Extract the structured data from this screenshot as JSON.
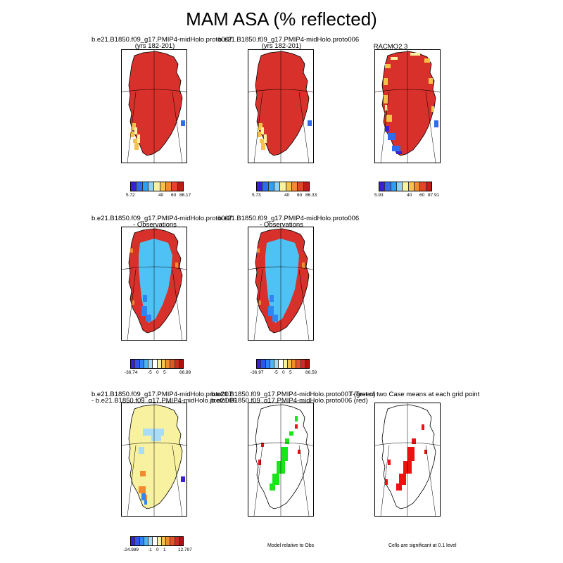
{
  "title": "MAM ASA (% reflected)",
  "rows": [
    {
      "panels": [
        {
          "title1": "b.e21.B1850.f09_g17.PMIP4-midHolo.proto007",
          "title2": "(yrs 182-201)"
        },
        {
          "title1": "b.e21.B1850.f09_g17.PMIP4-midHolo.proto006",
          "title2": "(yrs 182-201)"
        },
        {
          "title1": "RACMO2.3",
          "title2": ""
        }
      ],
      "colorbars": [
        {
          "min": "5.72",
          "t1": "40",
          "t2": "60",
          "max": "86.17"
        },
        {
          "min": "5.73",
          "t1": "40",
          "t2": "60",
          "max": "86.33"
        },
        {
          "min": "5.93",
          "t1": "40",
          "t2": "60",
          "max": "87.91"
        }
      ]
    },
    {
      "panels": [
        {
          "title1": "b.e21.B1850.f09_g17.PMIP4-midHolo.proto007",
          "title2": "- Observations"
        },
        {
          "title1": "b.e21.B1850.f09_g17.PMIP4-midHolo.proto006",
          "title2": "- Observations"
        }
      ],
      "colorbars": [
        {
          "min": "-36.74",
          "t1": "-5",
          "t2": "0",
          "t3": "5",
          "max": "66.89"
        },
        {
          "min": "-36.97",
          "t1": "-5",
          "t2": "0",
          "t3": "5",
          "max": "66.59"
        }
      ]
    },
    {
      "panels": [
        {
          "title1": "b.e21.B1850.f09_g17.PMIP4-midHolo.proto007",
          "title2": "- b.e21.B1850.f09_g17.PMIP4-midHolo.proto006"
        },
        {
          "title1": "b.e21.B1850.f09_g17.PMIP4-midHolo.proto007 (green)",
          "title2": "b.e21.B1850.f09_g17.PMIP4-midHolo.proto006 (red)"
        },
        {
          "title1": "T-Test of two Case means at each grid point",
          "title2": ""
        }
      ],
      "colorbars": [
        {
          "min": "-24.989",
          "t1": "-1",
          "t2": "0",
          "t3": "1",
          "max": "12.797"
        }
      ],
      "footnotes": [
        "Model relative to Obs",
        "Cells are significant at 0.1 level"
      ]
    }
  ],
  "colors": {
    "seq": [
      "#3a1fd6",
      "#2f6cf0",
      "#2aa1f5",
      "#8fd0f5",
      "#f8f2a0",
      "#f6c24a",
      "#f28a2f",
      "#e2452a",
      "#c11a1a"
    ],
    "div": [
      "#3a1fd6",
      "#2f55ee",
      "#2f86f3",
      "#4bb6f6",
      "#a9dcf6",
      "#ffffff",
      "#f8f1a0",
      "#f6c24a",
      "#f28a2f",
      "#e65528",
      "#d12a22",
      "#b01010"
    ],
    "ice_high": "#d8302a",
    "obs_diff": "#4fc2f5",
    "case_diff": "#f8f1a0",
    "green": "#19e619",
    "red": "#ee1111"
  }
}
